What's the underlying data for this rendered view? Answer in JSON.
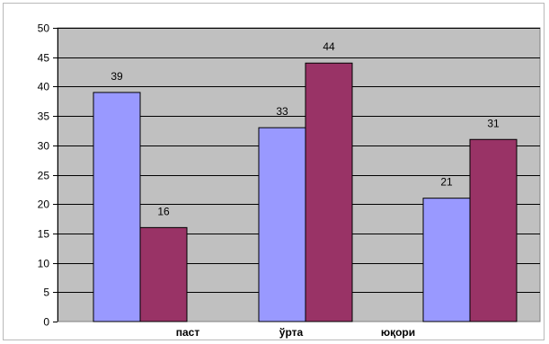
{
  "chart_data": {
    "type": "bar",
    "categories": [
      "паст",
      "ўрта",
      "юқори"
    ],
    "series": [
      {
        "color": "#9999ff",
        "values": [
          39,
          33,
          21
        ]
      },
      {
        "color": "#993366",
        "values": [
          16,
          44,
          31
        ]
      }
    ],
    "yticks": [
      "0",
      "5",
      "10",
      "15",
      "20",
      "25",
      "30",
      "35",
      "40",
      "45",
      "50"
    ],
    "ylim": [
      0,
      50
    ],
    "grid": true,
    "legend": "none",
    "plot_background": "#c0c0c0"
  }
}
